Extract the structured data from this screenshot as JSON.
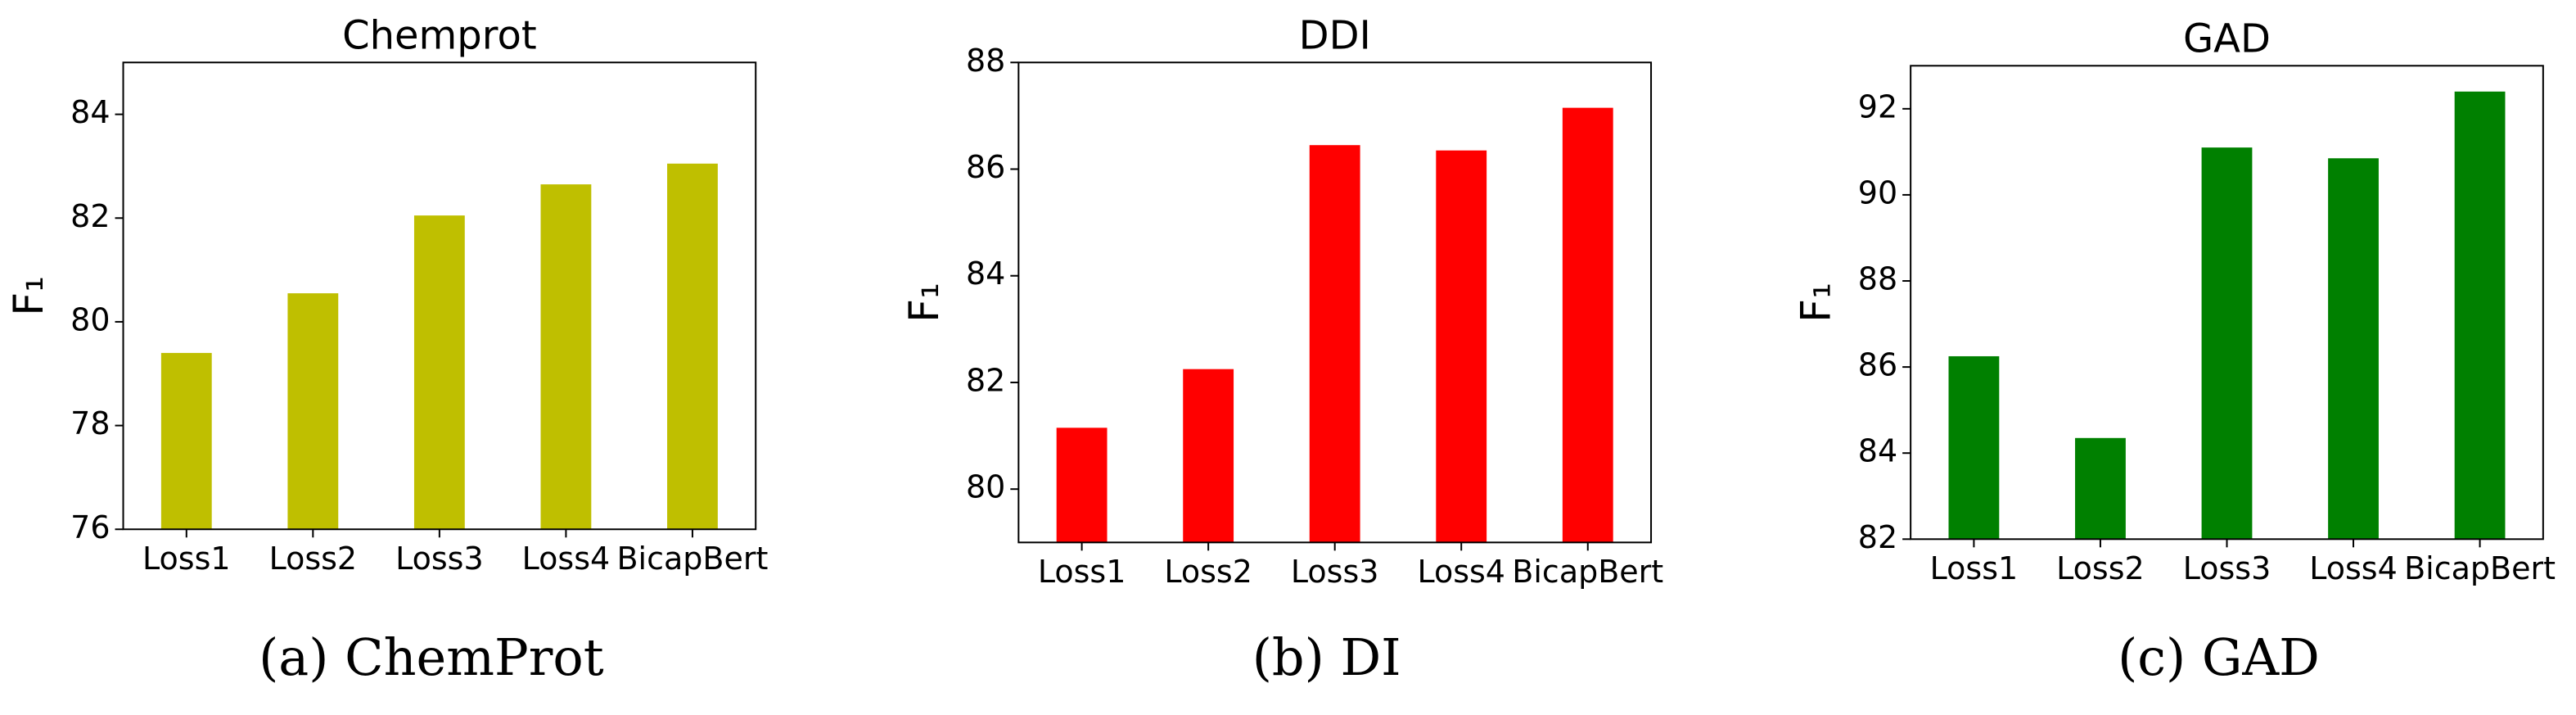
{
  "chart_data": [
    {
      "type": "bar",
      "title": "Chemprot",
      "y_label": "F₁",
      "caption": "(a) ChemProt",
      "categories": [
        "Loss1",
        "Loss2",
        "Loss3",
        "Loss4",
        "BicapBert"
      ],
      "values": [
        79.4,
        80.55,
        82.05,
        82.65,
        83.05
      ],
      "color": "#bfbf00",
      "ylim": [
        76,
        85
      ],
      "yticks": [
        76,
        78,
        80,
        82,
        84
      ]
    },
    {
      "type": "bar",
      "title": "DDI",
      "y_label": "F₁",
      "caption": "(b) DI",
      "categories": [
        "Loss1",
        "Loss2",
        "Loss3",
        "Loss4",
        "BicapBert"
      ],
      "values": [
        81.15,
        82.25,
        86.45,
        86.35,
        87.15
      ],
      "color": "#ff0000",
      "ylim": [
        79,
        88
      ],
      "yticks": [
        80,
        82,
        84,
        86,
        88
      ]
    },
    {
      "type": "bar",
      "title": "GAD",
      "y_label": "F₁",
      "caption": "(c) GAD",
      "categories": [
        "Loss1",
        "Loss2",
        "Loss3",
        "Loss4",
        "BicapBert"
      ],
      "values": [
        86.25,
        84.35,
        91.1,
        90.85,
        92.4
      ],
      "color": "#008000",
      "ylim": [
        82,
        93
      ],
      "yticks": [
        82,
        84,
        86,
        88,
        90,
        92
      ]
    }
  ]
}
